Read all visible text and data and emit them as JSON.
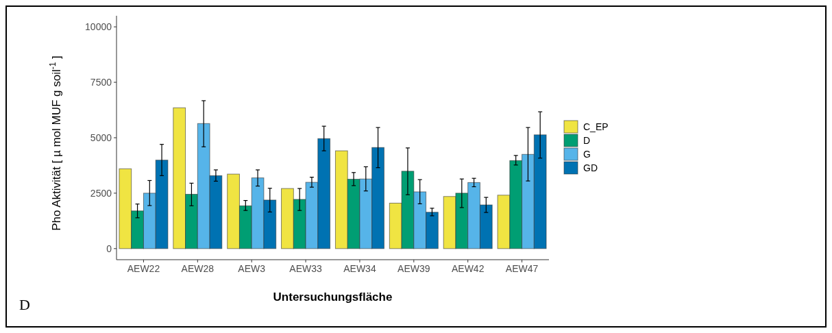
{
  "chart_data": {
    "type": "bar",
    "xlabel": "Untersuchungsfläche",
    "ylabel": "Pho Aktivität [ µ mol MUF g soil$^{-1}$ ]",
    "annotations": [
      "D"
    ],
    "categories": [
      "AEW22",
      "AEW28",
      "AEW3",
      "AEW33",
      "AEW34",
      "AEW39",
      "AEW42",
      "AEW47"
    ],
    "ylim": [
      -500,
      10500
    ],
    "yticks": [
      0,
      2500,
      5000,
      7500,
      10000
    ],
    "grid": false,
    "legend": "right",
    "series": [
      {
        "name": "C_EP",
        "color": "#f0e442",
        "values": [
          3600,
          6350,
          3360,
          2710,
          4410,
          2050,
          2350,
          2410
        ]
      },
      {
        "name": "D",
        "color": "#009e73",
        "values": [
          1700,
          2450,
          1930,
          2220,
          3130,
          3490,
          2500,
          3970
        ],
        "errors": [
          [
            1390,
            2010
          ],
          [
            1930,
            2950
          ],
          [
            1720,
            2170
          ],
          [
            1720,
            2710
          ],
          [
            2840,
            3430
          ],
          [
            2430,
            4540
          ],
          [
            1850,
            3140
          ],
          [
            3770,
            4200
          ]
        ]
      },
      {
        "name": "G",
        "color": "#56b4e9",
        "values": [
          2500,
          5640,
          3190,
          2990,
          3140,
          2560,
          2980,
          4250
        ],
        "errors": [
          [
            1940,
            3070
          ],
          [
            4590,
            6670
          ],
          [
            2820,
            3550
          ],
          [
            2770,
            3220
          ],
          [
            2600,
            3690
          ],
          [
            2020,
            3110
          ],
          [
            2790,
            3170
          ],
          [
            3050,
            5460
          ]
        ]
      },
      {
        "name": "GD",
        "color": "#0072b2",
        "values": [
          3990,
          3290,
          2190,
          4960,
          4560,
          1640,
          1970,
          5130
        ],
        "errors": [
          [
            3290,
            4700
          ],
          [
            3040,
            3550
          ],
          [
            1650,
            2720
          ],
          [
            4410,
            5520
          ],
          [
            3650,
            5460
          ],
          [
            1480,
            1820
          ],
          [
            1630,
            2310
          ],
          [
            4080,
            6170
          ]
        ]
      }
    ]
  }
}
